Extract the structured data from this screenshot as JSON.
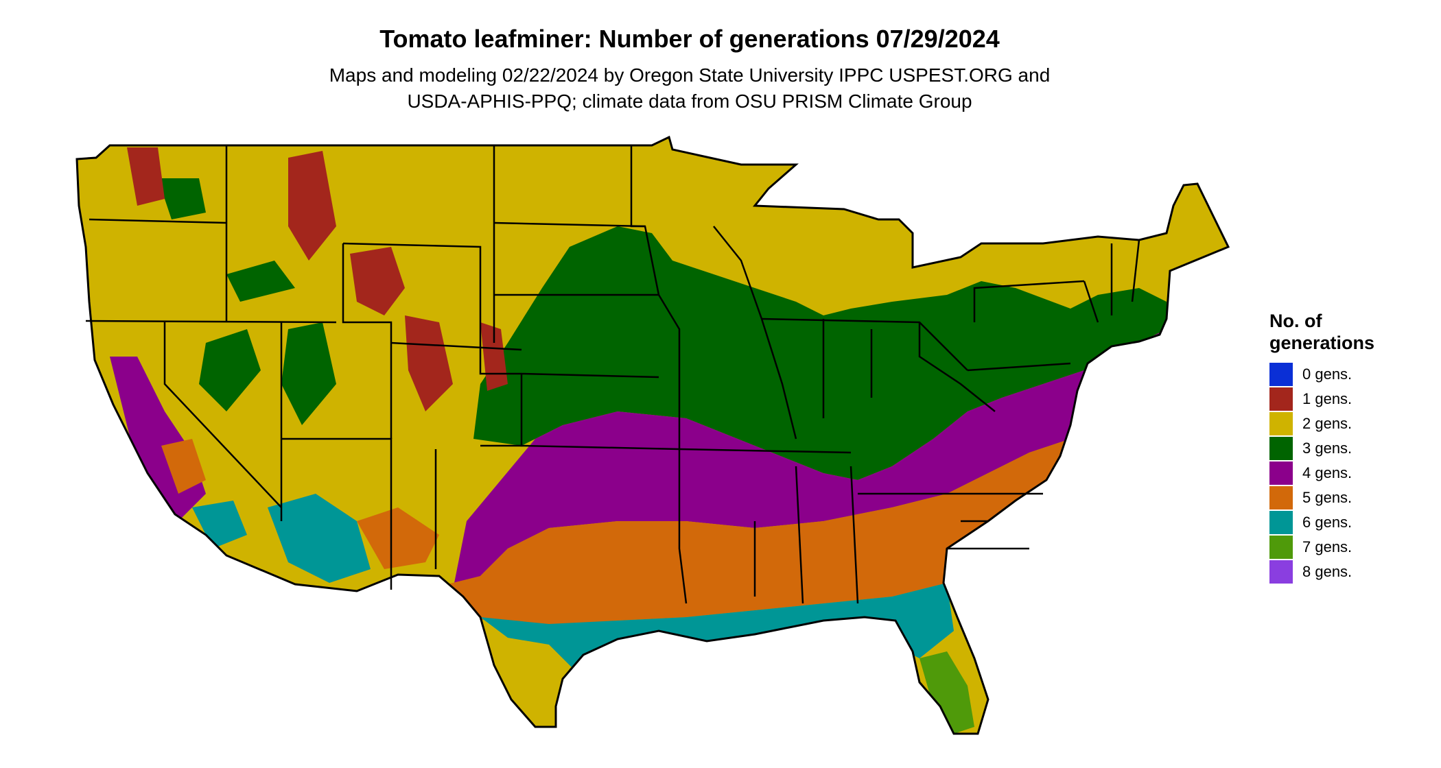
{
  "title": "Tomato leafminer: Number of generations 07/29/2024",
  "subtitle_line1": "Maps and modeling 02/22/2024 by Oregon State University IPPC USPEST.ORG and",
  "subtitle_line2": "USDA-APHIS-PPQ; climate data from OSU PRISM Climate Group",
  "legend": {
    "title_line1": "No. of",
    "title_line2": "generations",
    "items": [
      {
        "label": "0 gens.",
        "color": "#0a2fd6"
      },
      {
        "label": "1 gens.",
        "color": "#a3261c"
      },
      {
        "label": "2 gens.",
        "color": "#cfb300"
      },
      {
        "label": "3 gens.",
        "color": "#006400"
      },
      {
        "label": "4 gens.",
        "color": "#8b008b"
      },
      {
        "label": "5 gens.",
        "color": "#d2690a"
      },
      {
        "label": "6 gens.",
        "color": "#009696"
      },
      {
        "label": "7 gens.",
        "color": "#4f9a0a"
      },
      {
        "label": "8 gens.",
        "color": "#8a3ee0"
      }
    ]
  }
}
